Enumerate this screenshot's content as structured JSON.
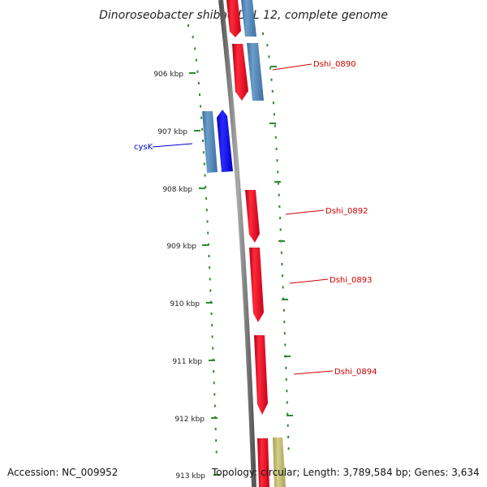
{
  "title": "Dinoroseobacter shibae DFL 12, complete genome",
  "footer": {
    "accession": "Accession: NC_009952",
    "topology": "Topology: circular; Length: 3,789,584 bp; Genes: 3,634"
  },
  "ticks": [
    "906 kbp",
    "907 kbp",
    "908 kbp",
    "909 kbp",
    "910 kbp",
    "911 kbp",
    "912 kbp",
    "913 kbp"
  ],
  "gene_labels": [
    {
      "text": "Dshi_0890",
      "color": "#cc0000"
    },
    {
      "text": "cysK",
      "color": "#0000cc"
    },
    {
      "text": "Dshi_0892",
      "color": "#cc0000"
    },
    {
      "text": "Dshi_0893",
      "color": "#cc0000"
    },
    {
      "text": "Dshi_0894",
      "color": "#cc0000"
    }
  ],
  "colors": {
    "backbone": "#7a7a7a",
    "tick_marks": "#2e8b2e",
    "cds_red": "#e8001c",
    "cds_steelblue": "#4f86b8",
    "cds_blue": "#0000ee",
    "cds_khaki": "#bdb76b"
  }
}
